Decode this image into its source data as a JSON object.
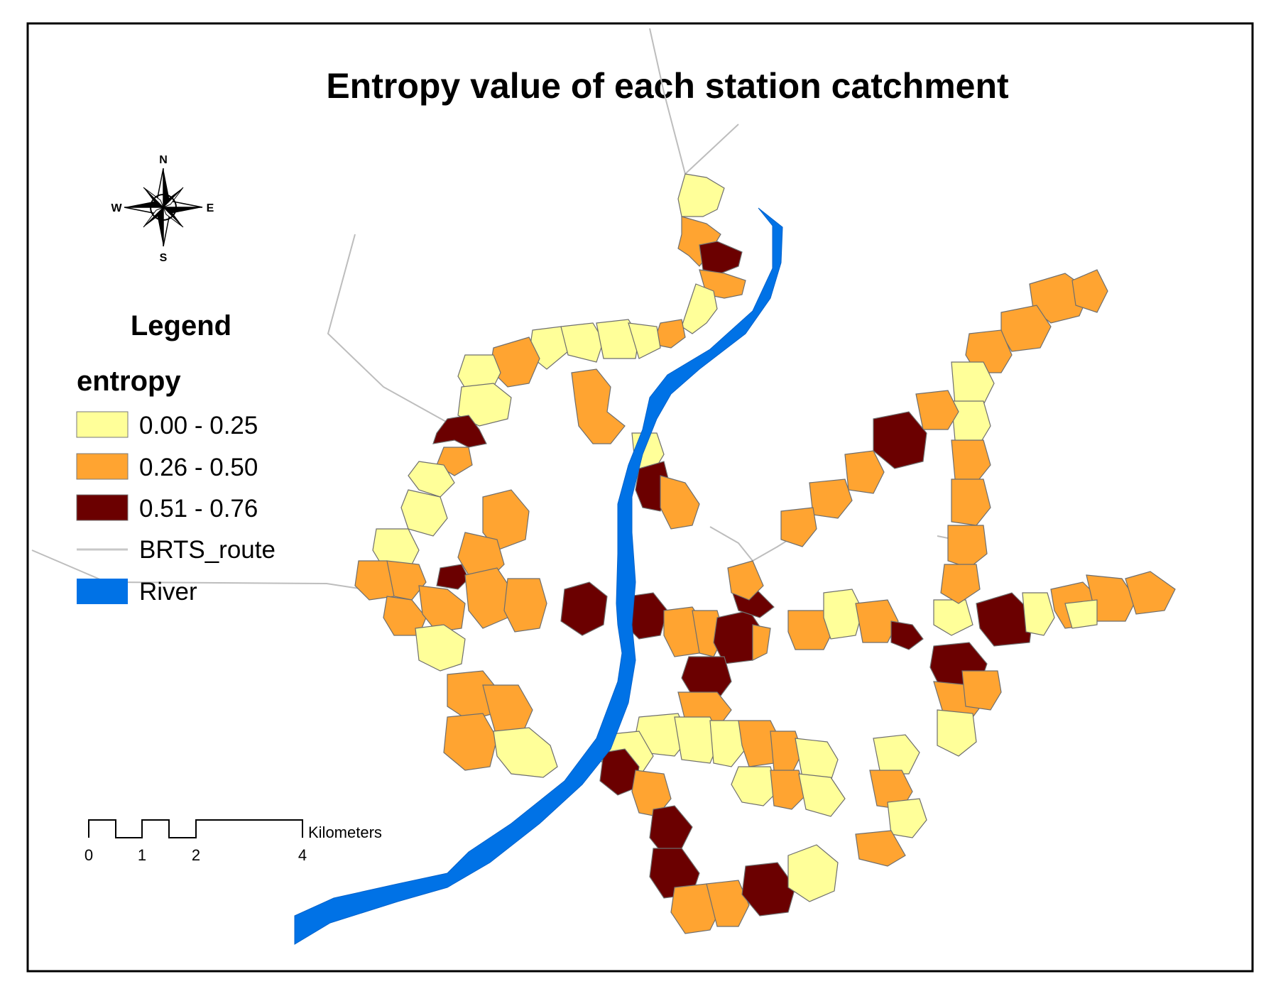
{
  "title": "Entropy value of each station catchment",
  "compass": {
    "n": "N",
    "s": "S",
    "e": "E",
    "w": "W"
  },
  "legend": {
    "heading": "Legend",
    "field": "entropy",
    "classes": [
      {
        "label": "0.00 - 0.25",
        "color": "#ffff99"
      },
      {
        "label": "0.26 - 0.50",
        "color": "#ffa431"
      },
      {
        "label": "0.51 - 0.76",
        "color": "#6b0000"
      }
    ],
    "route": {
      "label": "BRTS_route",
      "color": "#c8c8c8"
    },
    "river": {
      "label": "River",
      "color": "#0072e6"
    }
  },
  "scale_bar": {
    "unit": "Kilometers",
    "ticks": [
      "0",
      "1",
      "2",
      "4"
    ]
  }
}
